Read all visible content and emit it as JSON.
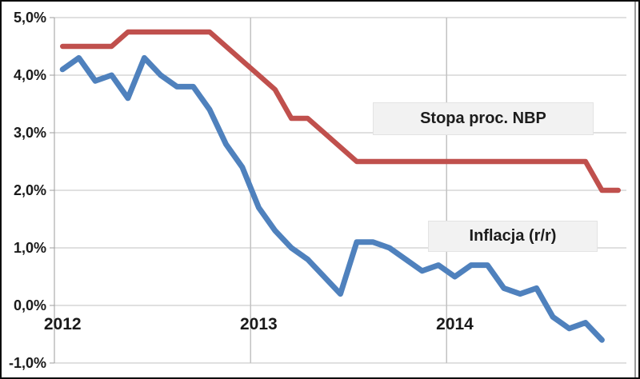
{
  "chart_data": {
    "type": "line",
    "title": "",
    "xlabel": "",
    "ylabel": "",
    "grid": true,
    "legend_position": "floating-text-boxes",
    "y_axis": {
      "min": -1.0,
      "max": 5.0,
      "tick_step": 1.0,
      "tick_labels": [
        "5,0%",
        "4,0%",
        "3,0%",
        "2,0%",
        "1,0%",
        "0,0%",
        "-1,0%"
      ],
      "number_format": "percent-comma-decimal"
    },
    "x_axis": {
      "year_labels": [
        "2012",
        "2013",
        "2014"
      ],
      "slots_per_year": 12,
      "total_month_slots": 35,
      "unit": "month"
    },
    "series": [
      {
        "name": "Stopa proc. NBP",
        "color": "#C0504D",
        "start": "Jan 2012",
        "end": "Nov 2014",
        "values": [
          4.5,
          4.5,
          4.5,
          4.5,
          4.75,
          4.75,
          4.75,
          4.75,
          4.75,
          4.75,
          4.5,
          4.25,
          4.0,
          3.75,
          3.25,
          3.25,
          3.0,
          2.75,
          2.5,
          2.5,
          2.5,
          2.5,
          2.5,
          2.5,
          2.5,
          2.5,
          2.5,
          2.5,
          2.5,
          2.5,
          2.5,
          2.5,
          2.5,
          2.0,
          2.0
        ]
      },
      {
        "name": "Inflacja (r/r)",
        "color": "#4F81BD",
        "start": "Jan 2012",
        "end": "Oct 2014",
        "values": [
          4.1,
          4.3,
          3.9,
          4.0,
          3.6,
          4.3,
          4.0,
          3.8,
          3.8,
          3.4,
          2.8,
          2.4,
          1.7,
          1.3,
          1.0,
          0.8,
          0.5,
          0.2,
          1.1,
          1.1,
          1.0,
          0.8,
          0.6,
          0.7,
          0.5,
          0.7,
          0.7,
          0.3,
          0.2,
          0.3,
          -0.2,
          -0.4,
          -0.3,
          -0.6
        ]
      }
    ],
    "colors": {
      "background": "#FFFFFF",
      "outer_border": "#0D0D0D",
      "gridline": "#C2C2C2",
      "axis_line": "#9E9E9E",
      "right_edge_line": "#9A9A9A",
      "label_box_bg": "#F2F2F2"
    }
  }
}
